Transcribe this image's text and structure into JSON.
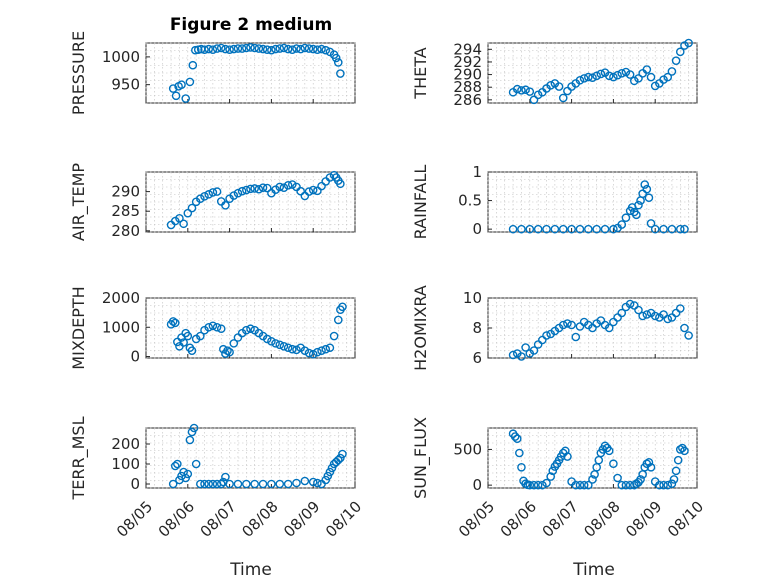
{
  "figure_title": "Figure 2 medium",
  "xlabel": "Time",
  "x_tick_labels": [
    "08/05",
    "08/06",
    "08/07",
    "08/08",
    "08/09",
    "08/10"
  ],
  "marker_color": "#0072BD",
  "chart_data": [
    {
      "type": "scatter",
      "ylabel": "PRESSURE",
      "ylim": [
        917,
        1025
      ],
      "yticks": [
        950,
        1000
      ],
      "x": [
        0.65,
        0.72,
        0.78,
        0.85,
        0.95,
        1.05,
        1.12,
        1.18,
        1.25,
        1.32,
        1.4,
        1.5,
        1.6,
        1.7,
        1.8,
        1.9,
        2.0,
        2.1,
        2.2,
        2.3,
        2.4,
        2.5,
        2.6,
        2.7,
        2.8,
        2.9,
        3.0,
        3.1,
        3.2,
        3.3,
        3.4,
        3.5,
        3.6,
        3.7,
        3.8,
        3.9,
        4.0,
        4.1,
        4.2,
        4.3,
        4.4,
        4.5,
        4.55,
        4.6,
        4.65
      ],
      "y": [
        943,
        930,
        947,
        950,
        925,
        955,
        985,
        1012,
        1013,
        1014,
        1013,
        1014,
        1013,
        1015,
        1016,
        1014,
        1013,
        1014,
        1015,
        1015,
        1016,
        1017,
        1016,
        1015,
        1014,
        1013,
        1012,
        1014,
        1015,
        1016,
        1014,
        1013,
        1015,
        1014,
        1016,
        1015,
        1014,
        1013,
        1014,
        1012,
        1009,
        1004,
        998,
        990,
        970
      ]
    },
    {
      "type": "scatter",
      "ylabel": "THETA",
      "ylim": [
        285.5,
        295
      ],
      "yticks": [
        286,
        288,
        290,
        292,
        294
      ],
      "x": [
        0.6,
        0.7,
        0.8,
        0.9,
        1.0,
        1.1,
        1.2,
        1.3,
        1.4,
        1.5,
        1.6,
        1.7,
        1.8,
        1.9,
        2.0,
        2.1,
        2.2,
        2.3,
        2.4,
        2.5,
        2.6,
        2.7,
        2.8,
        2.9,
        3.0,
        3.1,
        3.2,
        3.3,
        3.4,
        3.5,
        3.6,
        3.7,
        3.8,
        3.9,
        4.0,
        4.1,
        4.2,
        4.3,
        4.4,
        4.5,
        4.6,
        4.7,
        4.8
      ],
      "y": [
        287.2,
        287.7,
        287.5,
        287.6,
        287.3,
        286,
        286.8,
        287.2,
        287.8,
        288.3,
        288.6,
        288.1,
        286.3,
        287.4,
        288.1,
        288.6,
        289.1,
        289.4,
        289.6,
        289.5,
        289.8,
        290.1,
        290.3,
        289.8,
        289.6,
        289.9,
        290.2,
        290.4,
        290.0,
        289.0,
        289.4,
        290.2,
        290.8,
        289.6,
        288.2,
        288.6,
        289.2,
        289.6,
        290.5,
        292.2,
        293.6,
        294.6,
        295.0
      ]
    },
    {
      "type": "scatter",
      "ylabel": "AIR_TEMP",
      "ylim": [
        279.7,
        295
      ],
      "yticks": [
        280,
        285,
        290
      ],
      "x": [
        0.6,
        0.7,
        0.8,
        0.9,
        1.0,
        1.1,
        1.2,
        1.3,
        1.4,
        1.5,
        1.6,
        1.7,
        1.8,
        1.9,
        2.0,
        2.1,
        2.2,
        2.3,
        2.4,
        2.5,
        2.6,
        2.7,
        2.8,
        2.9,
        3.0,
        3.1,
        3.2,
        3.3,
        3.4,
        3.5,
        3.6,
        3.7,
        3.8,
        3.9,
        4.0,
        4.1,
        4.2,
        4.3,
        4.4,
        4.5,
        4.55,
        4.6,
        4.65
      ],
      "y": [
        281.5,
        282.5,
        283.2,
        281.8,
        284.5,
        285.8,
        287.4,
        288.2,
        288.8,
        289.3,
        289.8,
        290.0,
        287.5,
        286.5,
        288.2,
        289.0,
        289.6,
        290.1,
        290.4,
        290.7,
        290.8,
        290.6,
        291.0,
        290.9,
        289.6,
        290.5,
        291.2,
        291.0,
        291.6,
        291.8,
        291.2,
        290.1,
        288.9,
        290.0,
        290.4,
        290.2,
        291.4,
        292.6,
        293.6,
        294.2,
        293.6,
        292.8,
        292.0
      ]
    },
    {
      "type": "scatter",
      "ylabel": "RAINFALL",
      "ylim": [
        -0.05,
        1.0
      ],
      "yticks": [
        0,
        0.5,
        1
      ],
      "x": [
        0.6,
        0.8,
        1.0,
        1.2,
        1.4,
        1.6,
        1.8,
        2.0,
        2.2,
        2.4,
        2.6,
        2.8,
        3.0,
        3.1,
        3.2,
        3.3,
        3.4,
        3.45,
        3.5,
        3.55,
        3.6,
        3.65,
        3.7,
        3.75,
        3.8,
        3.85,
        3.9,
        4.0,
        4.2,
        4.4,
        4.6,
        4.7
      ],
      "y": [
        0,
        0,
        0,
        0,
        0,
        0,
        0,
        0,
        0,
        0,
        0,
        0,
        0,
        0.02,
        0.08,
        0.2,
        0.32,
        0.38,
        0.3,
        0.25,
        0.42,
        0.5,
        0.62,
        0.78,
        0.7,
        0.55,
        0.1,
        0,
        0,
        0,
        0,
        0
      ]
    },
    {
      "type": "scatter",
      "ylabel": "MIXDEPTH",
      "ylim": [
        -50,
        2000
      ],
      "yticks": [
        0,
        1000,
        2000
      ],
      "x": [
        0.6,
        0.65,
        0.7,
        0.75,
        0.8,
        0.85,
        0.9,
        0.95,
        1.0,
        1.05,
        1.1,
        1.2,
        1.3,
        1.4,
        1.5,
        1.6,
        1.7,
        1.8,
        1.85,
        1.9,
        1.95,
        2.0,
        2.1,
        2.2,
        2.3,
        2.4,
        2.5,
        2.6,
        2.7,
        2.8,
        2.9,
        3.0,
        3.1,
        3.2,
        3.3,
        3.4,
        3.5,
        3.6,
        3.7,
        3.8,
        3.9,
        4.0,
        4.1,
        4.2,
        4.3,
        4.4,
        4.5,
        4.6,
        4.65,
        4.7
      ],
      "y": [
        1100,
        1200,
        1150,
        500,
        350,
        650,
        480,
        800,
        700,
        300,
        200,
        600,
        700,
        900,
        1000,
        1050,
        1000,
        950,
        250,
        100,
        200,
        150,
        450,
        650,
        800,
        900,
        950,
        900,
        800,
        700,
        600,
        520,
        450,
        400,
        350,
        300,
        250,
        230,
        300,
        200,
        120,
        80,
        150,
        200,
        250,
        300,
        700,
        1250,
        1600,
        1700
      ]
    },
    {
      "type": "scatter",
      "ylabel": "H2OMIXRA",
      "ylim": [
        6,
        10
      ],
      "yticks": [
        6,
        8,
        10
      ],
      "x": [
        0.6,
        0.7,
        0.8,
        0.9,
        1.0,
        1.1,
        1.2,
        1.3,
        1.4,
        1.5,
        1.6,
        1.7,
        1.8,
        1.9,
        2.0,
        2.1,
        2.2,
        2.3,
        2.4,
        2.5,
        2.6,
        2.7,
        2.8,
        2.9,
        3.0,
        3.1,
        3.2,
        3.3,
        3.4,
        3.5,
        3.6,
        3.7,
        3.8,
        3.9,
        4.0,
        4.1,
        4.2,
        4.3,
        4.4,
        4.5,
        4.6,
        4.7,
        4.8
      ],
      "y": [
        6.2,
        6.3,
        6.1,
        6.7,
        6.3,
        6.5,
        6.9,
        7.2,
        7.5,
        7.6,
        7.8,
        8.0,
        8.2,
        8.3,
        8.2,
        7.4,
        8.1,
        8.4,
        8.2,
        8.0,
        8.3,
        8.5,
        8.2,
        8.0,
        8.4,
        8.7,
        9.0,
        9.4,
        9.6,
        9.5,
        9.2,
        8.8,
        8.9,
        9.0,
        8.8,
        8.7,
        8.9,
        8.6,
        8.7,
        9.0,
        9.3,
        8.0,
        7.5
      ]
    },
    {
      "type": "scatter",
      "ylabel": "TERR_MSL",
      "ylim": [
        -20,
        280
      ],
      "yticks": [
        0,
        100,
        200
      ],
      "x": [
        0.65,
        0.7,
        0.75,
        0.8,
        0.85,
        0.9,
        0.95,
        1.0,
        1.05,
        1.1,
        1.15,
        1.2,
        1.3,
        1.4,
        1.5,
        1.6,
        1.7,
        1.8,
        1.85,
        1.9,
        2.0,
        2.2,
        2.4,
        2.6,
        2.8,
        3.0,
        3.2,
        3.4,
        3.6,
        3.8,
        4.0,
        4.1,
        4.2,
        4.3,
        4.35,
        4.4,
        4.45,
        4.5,
        4.55,
        4.6,
        4.65,
        4.7
      ],
      "y": [
        0,
        90,
        100,
        20,
        40,
        60,
        30,
        50,
        220,
        260,
        280,
        100,
        0,
        0,
        0,
        0,
        0,
        0,
        10,
        35,
        0,
        0,
        0,
        0,
        0,
        0,
        0,
        0,
        5,
        15,
        10,
        5,
        0,
        20,
        40,
        60,
        80,
        100,
        110,
        120,
        130,
        150
      ]
    },
    {
      "type": "scatter",
      "ylabel": "SUN_FLUX",
      "ylim": [
        -40,
        800
      ],
      "yticks": [
        0,
        500
      ],
      "x": [
        0.6,
        0.65,
        0.7,
        0.75,
        0.8,
        0.85,
        0.9,
        0.95,
        1.0,
        1.1,
        1.2,
        1.3,
        1.4,
        1.5,
        1.55,
        1.6,
        1.65,
        1.7,
        1.75,
        1.8,
        1.85,
        1.9,
        2.0,
        2.1,
        2.2,
        2.3,
        2.4,
        2.5,
        2.55,
        2.6,
        2.65,
        2.7,
        2.75,
        2.8,
        2.85,
        2.9,
        3.0,
        3.1,
        3.2,
        3.3,
        3.4,
        3.5,
        3.55,
        3.6,
        3.65,
        3.7,
        3.75,
        3.8,
        3.85,
        3.9,
        4.0,
        4.1,
        4.2,
        4.3,
        4.4,
        4.45,
        4.5,
        4.55,
        4.6,
        4.65,
        4.7
      ],
      "y": [
        720,
        680,
        650,
        450,
        250,
        60,
        20,
        5,
        0,
        0,
        0,
        0,
        30,
        120,
        200,
        260,
        300,
        350,
        400,
        450,
        480,
        400,
        50,
        0,
        0,
        0,
        0,
        80,
        150,
        250,
        350,
        450,
        500,
        550,
        520,
        480,
        300,
        100,
        0,
        0,
        0,
        0,
        20,
        40,
        80,
        150,
        250,
        300,
        320,
        250,
        50,
        0,
        0,
        0,
        20,
        80,
        200,
        350,
        500,
        520,
        480
      ]
    }
  ]
}
